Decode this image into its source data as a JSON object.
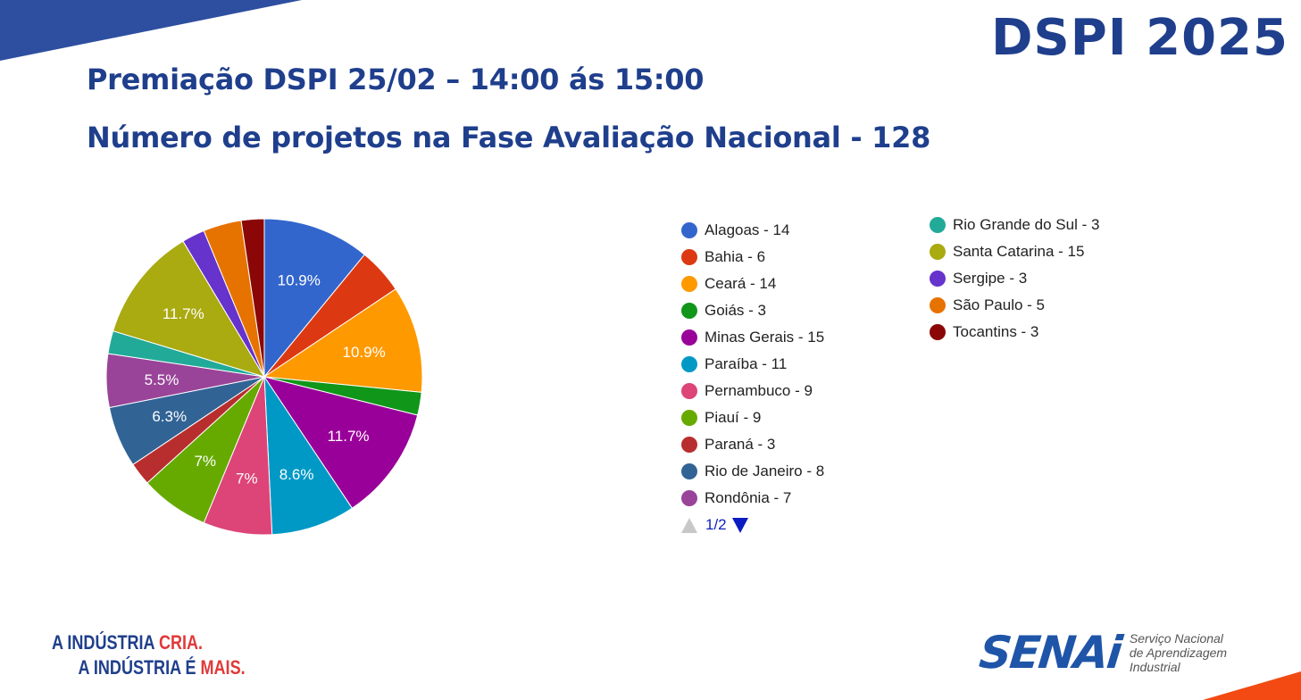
{
  "brand": "DSPI 2025",
  "title_line1": "Premiação DSPI 25/02 – 14:00 ás 15:00",
  "title_line2": "Número de projetos na Fase Avaliação Nacional - 128",
  "colors": {
    "brand_blue": "#1f3f8c",
    "accent_red": "#e03a3a",
    "senai_blue": "#1f55a8"
  },
  "chart_data": {
    "type": "pie",
    "total": 128,
    "slices": [
      {
        "name": "Alagoas",
        "value": 14,
        "color": "#3366cc",
        "label": "10.9%"
      },
      {
        "name": "Bahia",
        "value": 6,
        "color": "#dc3912",
        "label": ""
      },
      {
        "name": "Ceará",
        "value": 14,
        "color": "#ff9900",
        "label": "10.9%"
      },
      {
        "name": "Goiás",
        "value": 3,
        "color": "#109618",
        "label": ""
      },
      {
        "name": "Minas Gerais",
        "value": 15,
        "color": "#990099",
        "label": "11.7%"
      },
      {
        "name": "Paraíba",
        "value": 11,
        "color": "#0099c6",
        "label": "8.6%"
      },
      {
        "name": "Pernambuco",
        "value": 9,
        "color": "#dd4477",
        "label": "7%"
      },
      {
        "name": "Piauí",
        "value": 9,
        "color": "#66aa00",
        "label": "7%"
      },
      {
        "name": "Paraná",
        "value": 3,
        "color": "#b82e2e",
        "label": ""
      },
      {
        "name": "Rio de Janeiro",
        "value": 8,
        "color": "#316395",
        "label": "6.3%"
      },
      {
        "name": "Rondônia",
        "value": 7,
        "color": "#994499",
        "label": "5.5%"
      },
      {
        "name": "Rio Grande do Sul",
        "value": 3,
        "color": "#22aa99",
        "label": ""
      },
      {
        "name": "Santa Catarina",
        "value": 15,
        "color": "#aaaa11",
        "label": "11.7%"
      },
      {
        "name": "Sergipe",
        "value": 3,
        "color": "#6633cc",
        "label": ""
      },
      {
        "name": "São Paulo",
        "value": 5,
        "color": "#e67300",
        "label": ""
      },
      {
        "name": "Tocantins",
        "value": 3,
        "color": "#8b0707",
        "label": ""
      }
    ],
    "legend": {
      "col1": [
        "Alagoas - 14",
        "Bahia - 6",
        "Ceará - 14",
        "Goiás - 3",
        "Minas Gerais - 15",
        "Paraíba - 11",
        "Pernambuco - 9",
        "Piauí - 9",
        "Paraná - 3",
        "Rio de Janeiro - 8",
        "Rondônia - 7"
      ],
      "col2": [
        "Rio Grande do Sul - 3",
        "Santa Catarina - 15",
        "Sergipe - 3",
        "São Paulo - 5",
        "Tocantins - 3"
      ]
    },
    "pager": "1/2"
  },
  "slogan": {
    "line1_a": "A INDÚSTRIA ",
    "line1_b": "CRIA.",
    "line2_a": "A INDÚSTRIA É ",
    "line2_b": "MAIS."
  },
  "senai": {
    "word": "SENAi",
    "desc": [
      "Serviço Nacional",
      "de Aprendizagem",
      "Industrial"
    ]
  }
}
